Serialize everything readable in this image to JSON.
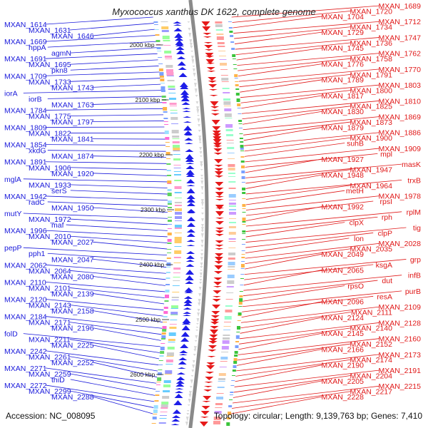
{
  "header": {
    "title": "Myxococcus xanthus DK 1622, complete genome"
  },
  "footer": {
    "accession": "Accession: NC_008095",
    "stats": "Topology: circular; Length: 9,139,763 bp; Genes: 7,410"
  },
  "colors": {
    "left_labels": "#1a1adb",
    "right_labels": "#e01818",
    "backbone": "#8a8a8a"
  },
  "kbp_ticks": [
    "2000 kbp",
    "2100 kbp",
    "2200 kbp",
    "2300 kbp",
    "2400 kbp",
    "2500 kbp",
    "2600 kbp"
  ],
  "left_labels": [
    "MXAN_1614",
    "MXAN_1631",
    "MXAN_1646",
    "MXAN_1669",
    "hppA",
    "agmN",
    "MXAN_1691",
    "MXAN_1695",
    "pkn8",
    "MXAN_1709",
    "MXAN_1733",
    "MXAN_1743",
    "iorA",
    "iorB",
    "MXAN_1763",
    "MXAN_1784",
    "MXAN_1775",
    "MXAN_1797",
    "MXAN_1809",
    "MXAN_1822",
    "MXAN_1841",
    "MXAN_1854",
    "xkdG",
    "MXAN_1874",
    "MXAN_1891",
    "MXAN_1906",
    "MXAN_1920",
    "mglA",
    "MXAN_1933",
    "serS",
    "MXAN_1942",
    "radC",
    "MXAN_1950",
    "mutY",
    "MXAN_1972",
    "maf",
    "MXAN_1996",
    "MXAN_2010",
    "MXAN_2027",
    "pepP",
    "pph1",
    "MXAN_2047",
    "MXAN_2062",
    "MXAN_2064",
    "MXAN_2080",
    "MXAN_2110",
    "MXAN_2101",
    "MXAN_2139",
    "MXAN_2120",
    "MXAN_2143",
    "MXAN_2158",
    "MXAN_2184",
    "MXAN_2171",
    "MXAN_2196",
    "folD",
    "MXAN_2211",
    "MXAN_2225",
    "MXAN_2242",
    "MXAN_2261",
    "MXAN_2252",
    "MXAN_2271",
    "MXAN_2259",
    "thiD",
    "MXAN_2272",
    "MXAN_2299",
    "MXAN_2288"
  ],
  "right_labels": [
    "MXAN_1689",
    "MXAN_1720",
    "MXAN_1704",
    "MXAN_1712",
    "MXAN_1734",
    "MXAN_1729",
    "MXAN_1747",
    "MXAN_1736",
    "MXAN_1745",
    "MXAN_1762",
    "MXAN_1758",
    "MXAN_1776",
    "MXAN_1770",
    "MXAN_1791",
    "MXAN_1789",
    "MXAN_1803",
    "MXAN_1800",
    "MXAN_1817",
    "MXAN_1810",
    "MXAN_1825",
    "MXAN_1830",
    "MXAN_1869",
    "MXAN_1873",
    "MXAN_1879",
    "MXAN_1886",
    "MXAN_1900",
    "suhB",
    "MXAN_1909",
    "mpl",
    "MXAN_1927",
    "masK",
    "MXAN_1947",
    "MXAN_1948",
    "trxB",
    "MXAN_1964",
    "metH",
    "MXAN_1978",
    "rpsI",
    "MXAN_1992",
    "rplM",
    "rph",
    "clpX",
    "tig",
    "clpP",
    "lon",
    "MXAN_2028",
    "MXAN_2035",
    "MXAN_2049",
    "grp",
    "ksgA",
    "MXAN_2065",
    "infB",
    "dut",
    "rpsO",
    "purB",
    "resA",
    "MXAN_2096",
    "MXAN_2109",
    "MXAN_2111",
    "MXAN_2124",
    "MXAN_2128",
    "MXAN_2140",
    "MXAN_2145",
    "MXAN_2160",
    "MXAN_2152",
    "MXAN_2166",
    "MXAN_2173",
    "MXAN_2174",
    "MXAN_2190",
    "MXAN_2191",
    "MXAN_2204",
    "MXAN_2205",
    "MXAN_2215",
    "MXAN_2217",
    "MXAN_2228"
  ]
}
